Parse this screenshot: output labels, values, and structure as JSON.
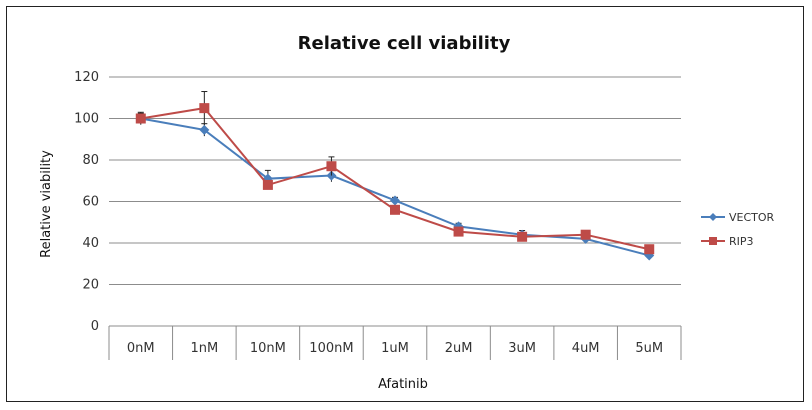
{
  "chart_data": {
    "type": "line",
    "title": "Relative cell viability",
    "xlabel": "Afatinib",
    "ylabel": "Relative viability",
    "categories": [
      "0nM",
      "1nM",
      "10nM",
      "100nM",
      "1uM",
      "2uM",
      "3uM",
      "4uM",
      "5uM"
    ],
    "ylim": [
      0,
      120
    ],
    "yticks": [
      0,
      20,
      40,
      60,
      80,
      100,
      120
    ],
    "grid": true,
    "legend_position": "right",
    "series": [
      {
        "name": "VECTOR",
        "color": "#4a7ebb",
        "marker": "diamond",
        "values": [
          100,
          94.5,
          71,
          72.5,
          60.5,
          48,
          44,
          42,
          34
        ],
        "errors": [
          2.5,
          3,
          4,
          3,
          1.5,
          1.5,
          2,
          2,
          2
        ]
      },
      {
        "name": "RIP3",
        "color": "#be4b48",
        "marker": "square",
        "values": [
          100,
          105,
          68,
          77,
          56,
          45.5,
          43,
          44,
          37
        ],
        "errors": [
          3,
          8,
          2,
          4.5,
          1.5,
          1.5,
          1,
          1.5,
          1
        ]
      }
    ]
  }
}
